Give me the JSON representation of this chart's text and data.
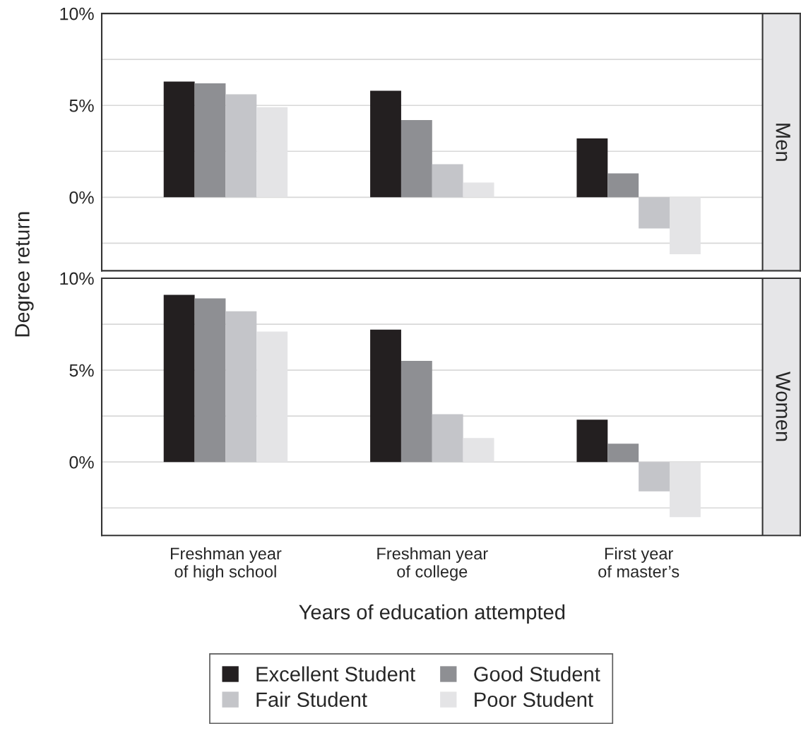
{
  "chart_data": [
    {
      "type": "bar",
      "title": "Men",
      "ylabel": "Degree return",
      "categories": [
        null,
        null,
        null
      ],
      "series": [
        {
          "color": "#231f20",
          "values": [
            6.3,
            5.8,
            3.2
          ]
        },
        {
          "color": "#8e8f93",
          "values": [
            6.2,
            4.2,
            1.3
          ]
        },
        {
          "color": "#c4c5c9",
          "values": [
            5.6,
            1.8,
            -1.7
          ]
        },
        {
          "color": "#e4e4e6",
          "values": [
            4.9,
            0.8,
            -3.1
          ]
        }
      ],
      "ylim": [
        -4,
        10
      ],
      "yticks": [
        {
          "value": -2.5,
          "label": null
        },
        {
          "value": 0,
          "label": "0%"
        },
        {
          "value": 2.5,
          "label": null
        },
        {
          "value": 5,
          "label": "5%"
        },
        {
          "value": 7.5,
          "label": null
        },
        {
          "value": 10,
          "label": "10%"
        }
      ],
      "grid": "y",
      "tick_labels": "y"
    },
    {
      "type": "bar",
      "title": "Women",
      "xlabel": "Years of education attempted",
      "categories": [
        "Freshman year\nof high school",
        "Freshman year\nof college",
        "First year\nof master’s"
      ],
      "series": [
        {
          "name": "Excellent Student",
          "color": "#231f20",
          "values": [
            9.1,
            7.2,
            2.3
          ]
        },
        {
          "name": "Good Student",
          "color": "#8e8f93",
          "values": [
            8.9,
            5.5,
            1.0
          ]
        },
        {
          "name": "Fair Student",
          "color": "#c4c5c9",
          "values": [
            8.2,
            2.6,
            -1.6
          ]
        },
        {
          "name": "Poor Student",
          "color": "#e4e4e6",
          "values": [
            7.1,
            1.3,
            -3.0
          ]
        }
      ],
      "ylim": [
        -4,
        10
      ],
      "yticks": [
        {
          "value": -2.5,
          "label": null
        },
        {
          "value": 0,
          "label": "0%"
        },
        {
          "value": 2.5,
          "label": null
        },
        {
          "value": 5,
          "label": "5%"
        },
        {
          "value": 7.5,
          "label": null
        },
        {
          "value": 10,
          "label": "10%"
        }
      ],
      "grid": "y",
      "legend": "bottom"
    }
  ]
}
